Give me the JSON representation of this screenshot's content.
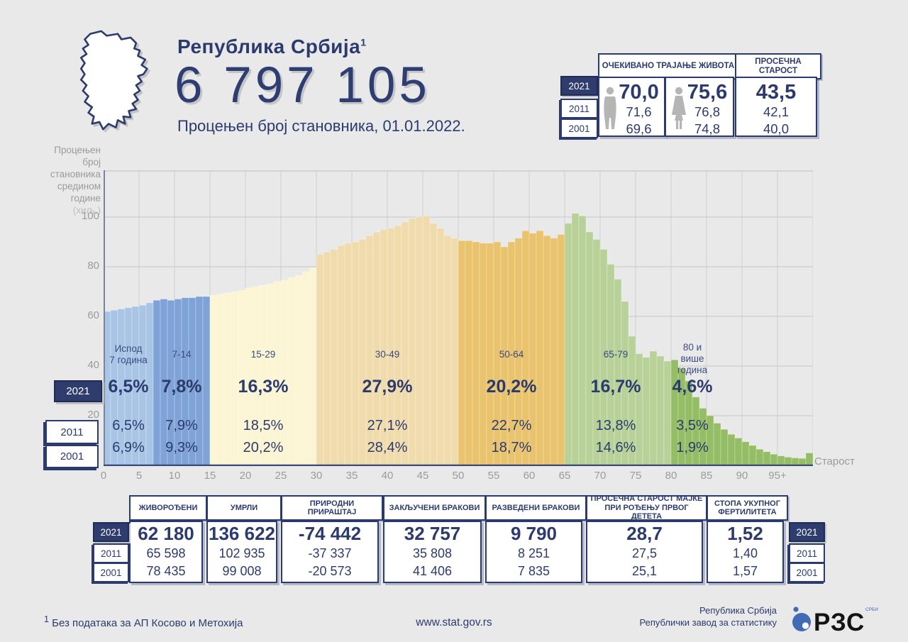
{
  "header": {
    "title": "Република Србија",
    "title_footnote": "1",
    "population_estimate": "6 797 105",
    "subtitle": "Процењен број становника, 01.01.2022."
  },
  "years": [
    "2021",
    "2011",
    "2001"
  ],
  "life_expectancy": {
    "title": "ОЧЕКИВАНО ТРАЈАЊЕ ЖИВОТА",
    "male": [
      "70,0",
      "71,6",
      "69,6"
    ],
    "female": [
      "75,6",
      "76,8",
      "74,8"
    ]
  },
  "average_age": {
    "title": "ПРОСЕЧНА СТАРОСТ",
    "values": [
      "43,5",
      "42,1",
      "40,0"
    ]
  },
  "chart_data": {
    "type": "bar",
    "title": "Процењен број становника средином године (хиљ.)",
    "ylabel_lines": [
      "Процењен",
      "број",
      "становника",
      "средином",
      "године"
    ],
    "ylabel_unit": "(хиљ.)",
    "xlabel": "Старост",
    "ylim": [
      0,
      120
    ],
    "y_ticks": [
      20,
      40,
      60,
      80,
      100
    ],
    "x_tick_labels": [
      "0",
      "5",
      "10",
      "15",
      "20",
      "25",
      "30",
      "35",
      "40",
      "45",
      "50",
      "55",
      "60",
      "65",
      "70",
      "75",
      "80",
      "85",
      "90",
      "95+"
    ],
    "values": [
      62,
      62.5,
      63,
      63.5,
      64,
      64.5,
      65.5,
      66.5,
      67,
      66.5,
      67,
      67.5,
      67.5,
      68,
      68,
      68.5,
      69,
      69.5,
      70,
      70.5,
      71.5,
      72,
      72.5,
      73,
      74,
      74.5,
      75.5,
      76.5,
      78,
      79.5,
      85,
      86,
      87,
      88.5,
      89.5,
      90,
      91,
      92.5,
      94,
      95,
      95.5,
      96.5,
      98,
      99.5,
      100,
      100.5,
      97.5,
      95.5,
      92.5,
      91.5,
      90.5,
      90.5,
      90,
      89.5,
      89.5,
      90,
      88,
      90,
      91.5,
      94.5,
      93.5,
      94.5,
      92.5,
      91.5,
      93,
      97.5,
      101.5,
      100.5,
      94,
      91,
      87,
      81,
      75,
      66,
      52,
      45,
      43.5,
      46,
      44,
      42,
      42.5,
      39,
      34,
      27.5,
      23,
      20,
      17,
      14.5,
      12.5,
      11,
      9.5,
      8,
      6.5,
      5.5,
      4.5,
      3.8,
      3.3,
      3,
      2.8,
      5
    ],
    "age_groups": [
      {
        "label": "Испод 7 година",
        "label_lines": [
          "Испод",
          "7 година"
        ],
        "from": 0,
        "to": 6,
        "color": "#a9c5e6",
        "share": {
          "2021": "6,5%",
          "2011": "6,5%",
          "2001": "6,9%"
        }
      },
      {
        "label": "7-14",
        "label_lines": [
          "7-14"
        ],
        "from": 7,
        "to": 14,
        "color": "#7fa3d6",
        "share": {
          "2021": "7,8%",
          "2011": "7,9%",
          "2001": "9,3%"
        }
      },
      {
        "label": "15-29",
        "label_lines": [
          "15-29"
        ],
        "from": 15,
        "to": 29,
        "color": "#fbf5d3",
        "share": {
          "2021": "16,3%",
          "2011": "18,5%",
          "2001": "20,2%"
        }
      },
      {
        "label": "30-49",
        "label_lines": [
          "30-49"
        ],
        "from": 30,
        "to": 49,
        "color": "#f0dbad",
        "share": {
          "2021": "27,9%",
          "2011": "27,1%",
          "2001": "28,4%"
        }
      },
      {
        "label": "50-64",
        "label_lines": [
          "50-64"
        ],
        "from": 50,
        "to": 64,
        "color": "#e9c36d",
        "share": {
          "2021": "20,2%",
          "2011": "22,7%",
          "2001": "18,7%"
        }
      },
      {
        "label": "65-79",
        "label_lines": [
          "65-79"
        ],
        "from": 65,
        "to": 79,
        "color": "#b7d199",
        "share": {
          "2021": "16,7%",
          "2011": "13,8%",
          "2001": "14,6%"
        }
      },
      {
        "label": "80 и више година",
        "label_lines": [
          "80 и",
          "више",
          "година"
        ],
        "from": 80,
        "to": 99,
        "color": "#94bd65",
        "share": {
          "2021": "4,6%",
          "2011": "3,5%",
          "2001": "1,9%"
        }
      }
    ]
  },
  "vital_stats": {
    "columns": [
      {
        "title": "ЖИВОРОЂЕНИ",
        "values": [
          "62 180",
          "65 598",
          "78 435"
        ]
      },
      {
        "title": "УМРЛИ",
        "values": [
          "136 622",
          "102 935",
          "99 008"
        ]
      },
      {
        "title": "ПРИРОДНИ ПРИРАШТАЈ",
        "values": [
          "-74 442",
          "-37 337",
          "-20 573"
        ]
      },
      {
        "title": "ЗАКЉУЧЕНИ БРАКОВИ",
        "values": [
          "32 757",
          "35 808",
          "41 406"
        ]
      },
      {
        "title": "РАЗВЕДЕНИ БРАКОВИ",
        "values": [
          "9 790",
          "8 251",
          "7 835"
        ]
      },
      {
        "title": "ПРОСЕЧНА СТАРОСТ МАЈКЕ ПРИ РОЂЕЊУ ПРВОГ ДЕТЕТА",
        "values": [
          "28,7",
          "27,5",
          "25,1"
        ]
      },
      {
        "title": "СТОПА УКУПНОГ ФЕРТИЛИТЕТА",
        "values": [
          "1,52",
          "1,40",
          "1,57"
        ]
      }
    ]
  },
  "footer": {
    "footnote_marker": "1",
    "footnote": "Без података за АП Косово и Метохија",
    "website": "www.stat.gov.rs",
    "org_line1": "Република Србија",
    "org_line2": "Републички завод за статистику",
    "logo_text": "РЗС",
    "logo_subtext": "СРБИЈЕ"
  },
  "colors": {
    "navy": "#2c3b6e",
    "accent_blue": "#3f6cb4",
    "background": "#e9e9e9",
    "grid": "#c9c9c9",
    "axis": "#3b4a7c",
    "muted_text": "#9b9b9b"
  }
}
